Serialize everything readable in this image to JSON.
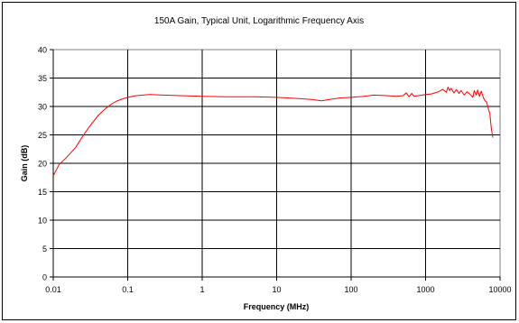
{
  "chart_data": {
    "type": "line",
    "title": "150A Gain, Typical Unit, Logarithmic Frequency Axis",
    "xlabel": "Frequency (MHz)",
    "ylabel": "Gain (dB)",
    "x_scale": "log",
    "xlim": [
      0.01,
      10000
    ],
    "ylim": [
      0,
      40
    ],
    "x_ticks": [
      "0.01",
      "0.1",
      "1",
      "10",
      "100",
      "1000",
      "10000"
    ],
    "y_ticks": [
      "0",
      "5",
      "10",
      "15",
      "20",
      "25",
      "30",
      "35",
      "40"
    ],
    "grid": true,
    "legend": "none",
    "line_color": "#ff0000",
    "series": [
      {
        "x": [
          0.01,
          0.012,
          0.015,
          0.02,
          0.025,
          0.03,
          0.04,
          0.05,
          0.06,
          0.07,
          0.08,
          0.1,
          0.13,
          0.16,
          0.2,
          0.3,
          0.5,
          1,
          2,
          5,
          10,
          20,
          30,
          40,
          50,
          70,
          100,
          150,
          200,
          300,
          400,
          500,
          550,
          600,
          650,
          700,
          800,
          1000,
          1200,
          1500,
          1700,
          1900,
          2000,
          2100,
          2200,
          2400,
          2600,
          2800,
          3000,
          3300,
          3600,
          4000,
          4300,
          4500,
          4800,
          5000,
          5300,
          5600,
          6000,
          6300,
          6600,
          7000,
          7300,
          7600,
          8000
        ],
        "values": [
          17.8,
          19.8,
          21.0,
          22.8,
          24.8,
          26.3,
          28.4,
          29.6,
          30.4,
          30.9,
          31.2,
          31.6,
          31.9,
          32.0,
          32.1,
          32.0,
          31.9,
          31.8,
          31.7,
          31.7,
          31.6,
          31.4,
          31.2,
          31.0,
          31.2,
          31.5,
          31.6,
          31.8,
          32.0,
          31.9,
          31.8,
          31.9,
          32.4,
          31.7,
          32.3,
          31.8,
          31.9,
          32.1,
          32.2,
          32.6,
          33.0,
          32.5,
          33.4,
          32.8,
          33.2,
          32.4,
          33.0,
          32.3,
          32.8,
          32.0,
          32.6,
          32.1,
          31.6,
          32.8,
          32.0,
          32.9,
          31.8,
          32.7,
          31.5,
          31.0,
          30.8,
          29.5,
          28.7,
          26.3,
          24.5
        ]
      }
    ]
  }
}
